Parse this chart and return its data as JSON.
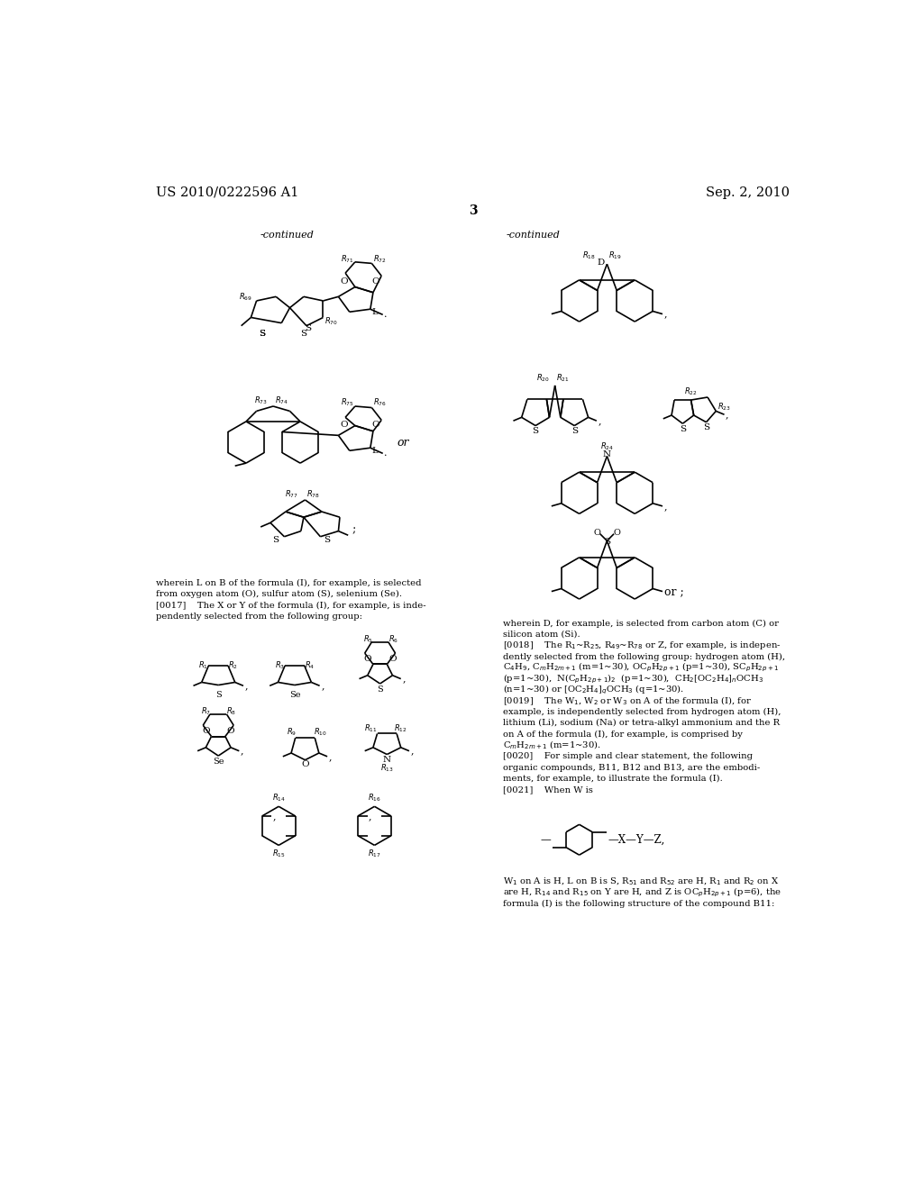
{
  "page_header_left": "US 2010/0222596 A1",
  "page_header_right": "Sep. 2, 2010",
  "page_number": "3",
  "background_color": "#ffffff",
  "text_color": "#000000",
  "font_size_header": 10.5,
  "font_size_body": 7.2,
  "font_size_label": 6.0,
  "font_size_number": 10,
  "continued_label": "-continued"
}
